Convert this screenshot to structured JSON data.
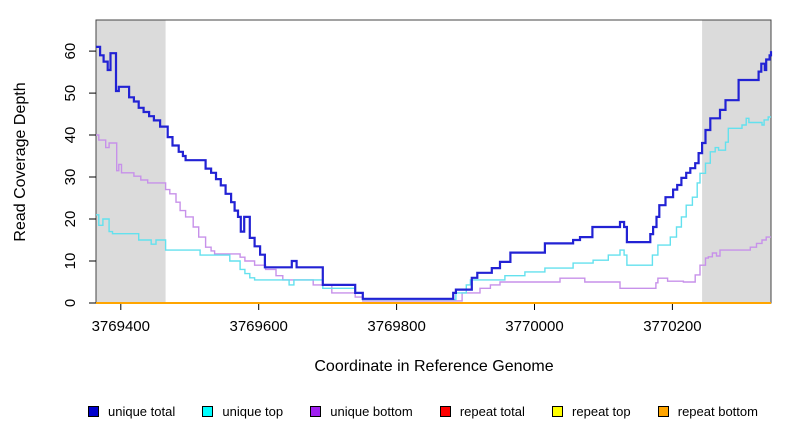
{
  "chart_data": {
    "type": "line",
    "subtype": "step-coverage-plot",
    "title": "",
    "xlabel": "Coordinate in Reference Genome",
    "ylabel": "Read Coverage Depth",
    "xlim": [
      3769364,
      3770343
    ],
    "ylim": [
      0,
      67.4
    ],
    "x_ticks": [
      3769400,
      3769600,
      3769800,
      3770000,
      3770200
    ],
    "y_ticks": [
      0,
      10,
      20,
      30,
      40,
      50,
      60
    ],
    "grid": false,
    "shade_color": "#dbdbdb",
    "shaded_regions": [
      [
        3769364,
        3769465
      ],
      [
        3770243,
        3770343
      ]
    ],
    "series": [
      {
        "id": "repeat-total",
        "name": "repeat total",
        "color": "#ff0000",
        "width": 1.4,
        "points": [
          [
            3769364,
            0
          ],
          [
            3770343,
            0
          ]
        ]
      },
      {
        "id": "repeat-top",
        "name": "repeat top",
        "color": "#ffff00",
        "width": 1.4,
        "points": [
          [
            3769364,
            0
          ],
          [
            3770343,
            0
          ]
        ]
      },
      {
        "id": "repeat-bottom",
        "name": "repeat bottom",
        "color": "#ffa500",
        "width": 2,
        "points": [
          [
            3769364,
            0
          ],
          [
            3770343,
            0
          ]
        ]
      },
      {
        "id": "unique-bottom",
        "name": "unique bottom",
        "color": "#c791ea",
        "width": 1.4,
        "points": [
          [
            3769364,
            40
          ],
          [
            3769368,
            38.8
          ],
          [
            3769378,
            37
          ],
          [
            3769383,
            38.1
          ],
          [
            3769394,
            31.5
          ],
          [
            3769397,
            33
          ],
          [
            3769401,
            31
          ],
          [
            3769419,
            30.2
          ],
          [
            3769429,
            29.3
          ],
          [
            3769439,
            28.6
          ],
          [
            3769465,
            27
          ],
          [
            3769471,
            26
          ],
          [
            3769480,
            24
          ],
          [
            3769486,
            22
          ],
          [
            3769494,
            20.5
          ],
          [
            3769505,
            18.1
          ],
          [
            3769513,
            15.7
          ],
          [
            3769523,
            13.3
          ],
          [
            3769531,
            12.4
          ],
          [
            3769536,
            11.7
          ],
          [
            3769573,
            10.9
          ],
          [
            3769580,
            10
          ],
          [
            3769594,
            9
          ],
          [
            3769610,
            8
          ],
          [
            3769625,
            6.5
          ],
          [
            3769635,
            5.5
          ],
          [
            3769679,
            4.3
          ],
          [
            3769706,
            2.4
          ],
          [
            3769740,
            1.4
          ],
          [
            3769751,
            0.5
          ],
          [
            3769895,
            2.4
          ],
          [
            3769921,
            3.5
          ],
          [
            3769936,
            4.3
          ],
          [
            3769950,
            5
          ],
          [
            3770037,
            5.9
          ],
          [
            3770073,
            5
          ],
          [
            3770124,
            3.5
          ],
          [
            3770176,
            4.8
          ],
          [
            3770179,
            5.9
          ],
          [
            3770193,
            5.2
          ],
          [
            3770216,
            5
          ],
          [
            3770233,
            6.7
          ],
          [
            3770240,
            9
          ],
          [
            3770248,
            10.7
          ],
          [
            3770252,
            11
          ],
          [
            3770258,
            11.9
          ],
          [
            3770264,
            11.2
          ],
          [
            3770269,
            12.6
          ],
          [
            3770313,
            13.3
          ],
          [
            3770322,
            14.2
          ],
          [
            3770330,
            15
          ],
          [
            3770336,
            15.7
          ],
          [
            3770343,
            15.7
          ]
        ]
      },
      {
        "id": "unique-top",
        "name": "unique top",
        "color": "#63e1ee",
        "width": 1.4,
        "points": [
          [
            3769364,
            21
          ],
          [
            3769368,
            18.5
          ],
          [
            3769374,
            20
          ],
          [
            3769383,
            17
          ],
          [
            3769388,
            16.5
          ],
          [
            3769426,
            15
          ],
          [
            3769444,
            14
          ],
          [
            3769451,
            15
          ],
          [
            3769465,
            12.6
          ],
          [
            3769515,
            11.4
          ],
          [
            3769558,
            10
          ],
          [
            3769573,
            8
          ],
          [
            3769580,
            7
          ],
          [
            3769587,
            6
          ],
          [
            3769594,
            5.5
          ],
          [
            3769644,
            4.3
          ],
          [
            3769651,
            5.5
          ],
          [
            3769693,
            3.5
          ],
          [
            3769740,
            2.4
          ],
          [
            3769751,
            0.8
          ],
          [
            3769886,
            2.4
          ],
          [
            3769901,
            4.3
          ],
          [
            3769907,
            5.5
          ],
          [
            3769957,
            6.5
          ],
          [
            3769986,
            7.4
          ],
          [
            3770015,
            8.3
          ],
          [
            3770056,
            9.5
          ],
          [
            3770085,
            10.2
          ],
          [
            3770107,
            11.4
          ],
          [
            3770124,
            12.6
          ],
          [
            3770130,
            11.4
          ],
          [
            3770134,
            9
          ],
          [
            3770171,
            11.4
          ],
          [
            3770179,
            13.8
          ],
          [
            3770197,
            15.7
          ],
          [
            3770206,
            18.1
          ],
          [
            3770213,
            20.5
          ],
          [
            3770220,
            23.3
          ],
          [
            3770229,
            25.2
          ],
          [
            3770236,
            28.6
          ],
          [
            3770240,
            30.9
          ],
          [
            3770248,
            33.3
          ],
          [
            3770255,
            36
          ],
          [
            3770262,
            37
          ],
          [
            3770267,
            36.4
          ],
          [
            3770277,
            38.3
          ],
          [
            3770281,
            41.6
          ],
          [
            3770301,
            42.4
          ],
          [
            3770307,
            44
          ],
          [
            3770311,
            43
          ],
          [
            3770330,
            42.4
          ],
          [
            3770333,
            43.6
          ],
          [
            3770339,
            44.3
          ],
          [
            3770343,
            44.3
          ]
        ]
      },
      {
        "id": "unique-total",
        "name": "unique total",
        "color": "#2222d4",
        "width": 2.2,
        "points": [
          [
            3769364,
            61
          ],
          [
            3769370,
            59
          ],
          [
            3769375,
            57.5
          ],
          [
            3769381,
            55.5
          ],
          [
            3769385,
            59.5
          ],
          [
            3769393,
            50.5
          ],
          [
            3769397,
            51.5
          ],
          [
            3769412,
            49
          ],
          [
            3769419,
            48
          ],
          [
            3769426,
            46.5
          ],
          [
            3769433,
            45.5
          ],
          [
            3769441,
            44.5
          ],
          [
            3769448,
            43.5
          ],
          [
            3769457,
            42
          ],
          [
            3769468,
            39.5
          ],
          [
            3769475,
            37.5
          ],
          [
            3769484,
            36
          ],
          [
            3769490,
            35
          ],
          [
            3769494,
            34
          ],
          [
            3769523,
            32
          ],
          [
            3769531,
            31
          ],
          [
            3769538,
            29.5
          ],
          [
            3769545,
            28
          ],
          [
            3769552,
            26
          ],
          [
            3769560,
            24
          ],
          [
            3769565,
            22
          ],
          [
            3769570,
            20.5
          ],
          [
            3769574,
            17
          ],
          [
            3769579,
            20.5
          ],
          [
            3769587,
            15.5
          ],
          [
            3769594,
            13.5
          ],
          [
            3769602,
            11.5
          ],
          [
            3769609,
            8.5
          ],
          [
            3769648,
            10
          ],
          [
            3769655,
            8.5
          ],
          [
            3769693,
            4.3
          ],
          [
            3769740,
            2.4
          ],
          [
            3769751,
            1
          ],
          [
            3769882,
            2.4
          ],
          [
            3769886,
            3.2
          ],
          [
            3769909,
            6
          ],
          [
            3769917,
            7.2
          ],
          [
            3769938,
            8.3
          ],
          [
            3769950,
            9.8
          ],
          [
            3769965,
            12
          ],
          [
            3770015,
            14.2
          ],
          [
            3770056,
            15
          ],
          [
            3770066,
            15.7
          ],
          [
            3770084,
            18.1
          ],
          [
            3770124,
            19.3
          ],
          [
            3770130,
            18.1
          ],
          [
            3770134,
            14.5
          ],
          [
            3770168,
            16.4
          ],
          [
            3770172,
            18.1
          ],
          [
            3770177,
            20.5
          ],
          [
            3770181,
            23.3
          ],
          [
            3770190,
            25.2
          ],
          [
            3770201,
            27
          ],
          [
            3770207,
            28.1
          ],
          [
            3770213,
            29.8
          ],
          [
            3770220,
            31
          ],
          [
            3770226,
            32.1
          ],
          [
            3770233,
            33.3
          ],
          [
            3770238,
            35.7
          ],
          [
            3770243,
            38.1
          ],
          [
            3770248,
            41.2
          ],
          [
            3770255,
            44
          ],
          [
            3770269,
            46
          ],
          [
            3770277,
            48.3
          ],
          [
            3770296,
            53.1
          ],
          [
            3770325,
            55.1
          ],
          [
            3770329,
            57
          ],
          [
            3770334,
            55.5
          ],
          [
            3770336,
            58
          ],
          [
            3770341,
            59
          ],
          [
            3770343,
            60
          ]
        ]
      }
    ],
    "legend_position": "bottom"
  },
  "legend": {
    "items": [
      {
        "label": "unique total",
        "color": "#0000cd"
      },
      {
        "label": "unique top",
        "color": "#00ffff"
      },
      {
        "label": "unique bottom",
        "color": "#a020f0"
      },
      {
        "label": "repeat total",
        "color": "#ff0000"
      },
      {
        "label": "repeat top",
        "color": "#ffff00"
      },
      {
        "label": "repeat bottom",
        "color": "#ffa500"
      }
    ]
  }
}
